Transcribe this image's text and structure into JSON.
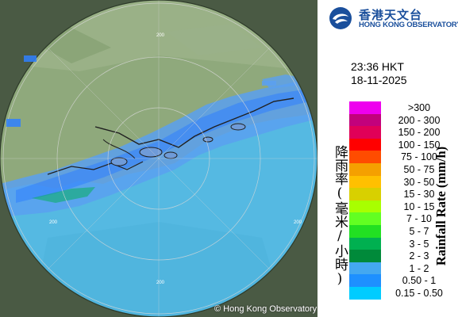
{
  "logo": {
    "name_zh": "香港天文台",
    "name_en": "HONG KONG OBSERVATORY",
    "icon": "observatory-logo-icon",
    "color": "#1a4f9c"
  },
  "time": {
    "clock": "23:36 HKT",
    "date": "18-11-2025"
  },
  "legend": {
    "title_zh": "降雨率(毫米/小時)",
    "title_en": "Rainfall Rate (mm/h)",
    "items": [
      {
        "label": ">300",
        "color": "#ee00ee"
      },
      {
        "label": "200 - 300",
        "color": "#c2017c"
      },
      {
        "label": "150 - 200",
        "color": "#e00058"
      },
      {
        "label": "100 - 150",
        "color": "#ff0000"
      },
      {
        "label": "75 - 100",
        "color": "#ff4c00"
      },
      {
        "label": "50 - 75",
        "color": "#f5a000"
      },
      {
        "label": "30 - 50",
        "color": "#ffc000"
      },
      {
        "label": "15 - 30",
        "color": "#d8d000"
      },
      {
        "label": "10 - 15",
        "color": "#a8ff00"
      },
      {
        "label": "7 - 10",
        "color": "#62ff22"
      },
      {
        "label": "5 - 7",
        "color": "#22e022"
      },
      {
        "label": "3 - 5",
        "color": "#00b050"
      },
      {
        "label": "2 - 3",
        "color": "#008a3a"
      },
      {
        "label": "1 - 2",
        "color": "#44a8f0"
      },
      {
        "label": "0.50 - 1",
        "color": "#1e90ff"
      },
      {
        "label": "0.15 - 0.50",
        "color": "#00ccff"
      }
    ]
  },
  "map": {
    "range_labels": [
      "200",
      "200",
      "200",
      "200"
    ],
    "copyright": "© Hong Kong Observatory"
  }
}
